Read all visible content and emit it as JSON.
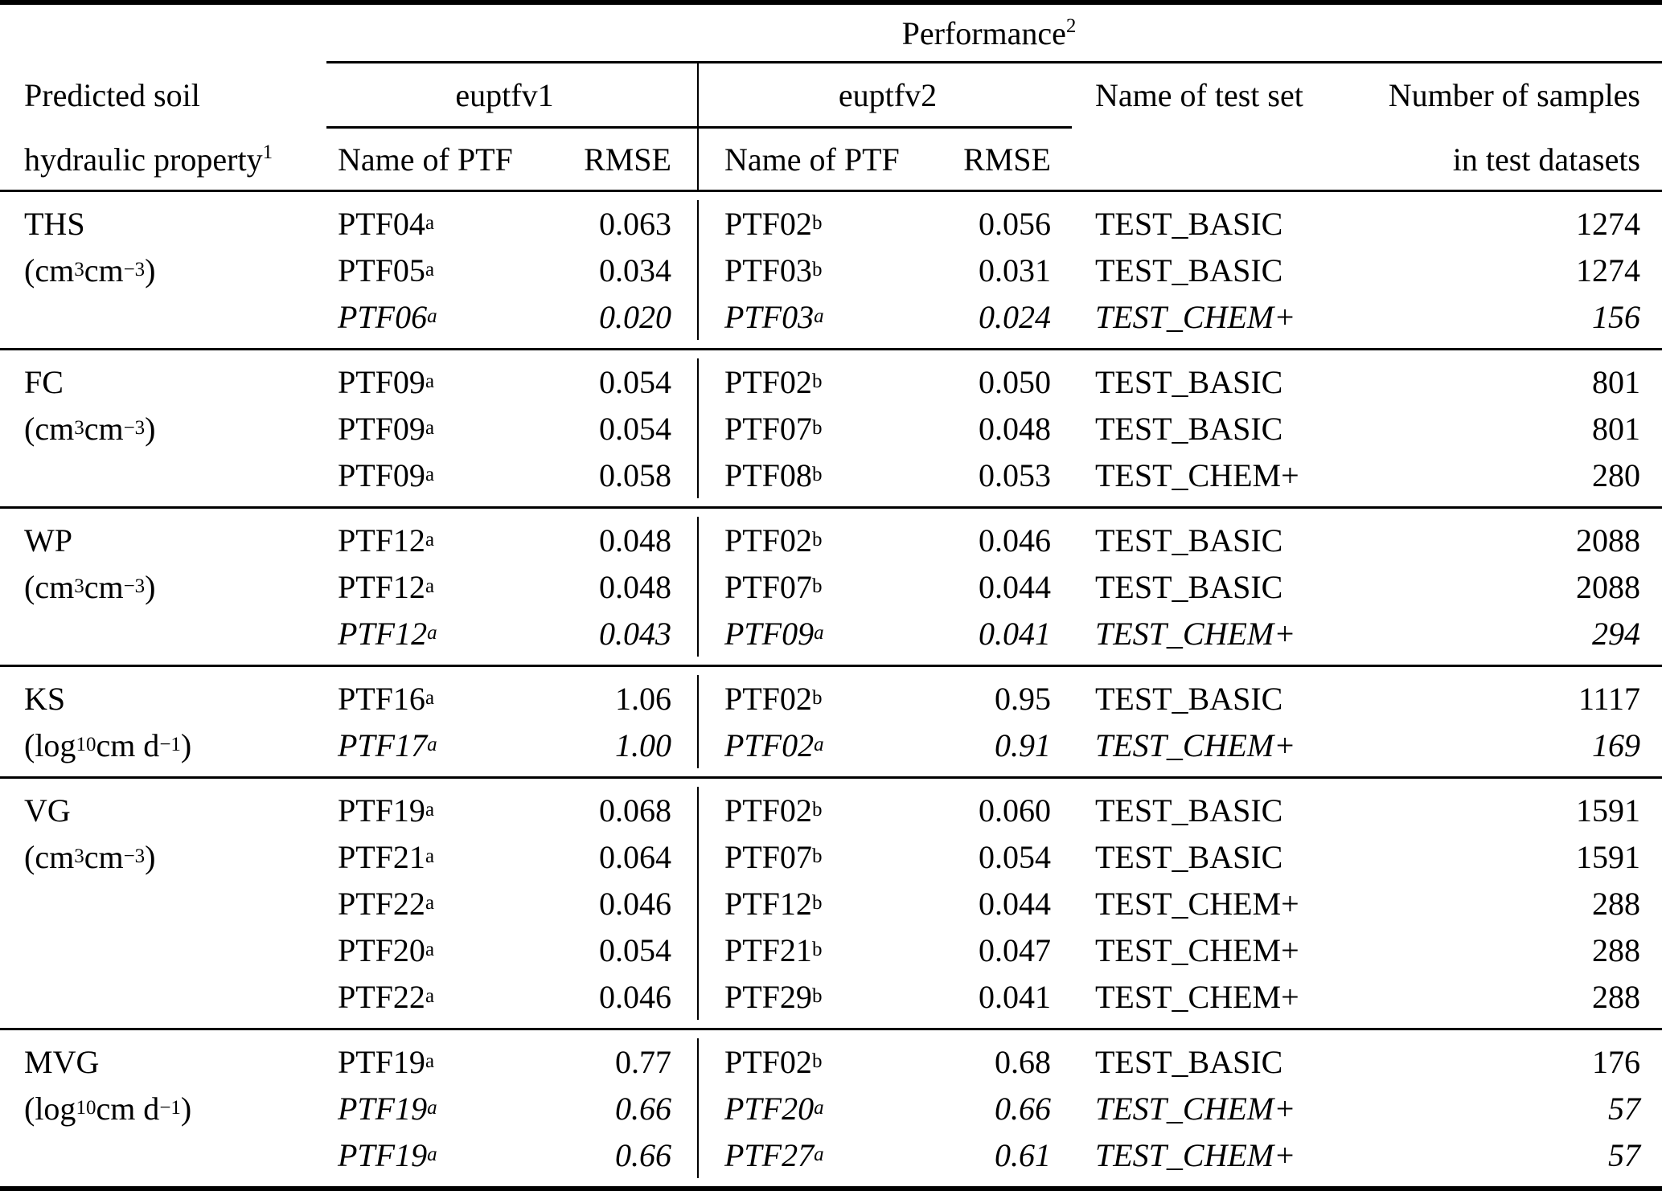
{
  "header": {
    "performance": "Performance",
    "performance_sup": "2",
    "property_line1": "Predicted soil",
    "property_line2": "hydraulic property",
    "property_sup": "1",
    "euptfv1": "euptfv1",
    "euptfv2": "euptfv2",
    "ptf_col": "Name of PTF",
    "rmse_col": "RMSE",
    "test_set_col": "Name of test set",
    "samples_col_line1": "Number of samples",
    "samples_col_line2": "in test datasets"
  },
  "colors": {
    "text": "#000000",
    "background": "#ffffff",
    "rules": "#000000"
  },
  "groups": [
    {
      "property": "THS",
      "unit": {
        "pre": "(cm",
        "sub": "",
        "sup1": "3",
        "mid": " cm",
        "sup2": "−3",
        "post": ")"
      },
      "rows": [
        {
          "italic": false,
          "v1_ptf": "PTF04",
          "v1_sup": "a",
          "v1_rmse": "0.063",
          "v2_ptf": "PTF02",
          "v2_sup": "b",
          "v2_rmse": "0.056",
          "test_set": "TEST_BASIC",
          "samples": "1274"
        },
        {
          "italic": false,
          "v1_ptf": "PTF05",
          "v1_sup": "a",
          "v1_rmse": "0.034",
          "v2_ptf": "PTF03",
          "v2_sup": "b",
          "v2_rmse": "0.031",
          "test_set": "TEST_BASIC",
          "samples": "1274"
        },
        {
          "italic": true,
          "v1_ptf": "PTF06",
          "v1_sup": "a",
          "v1_rmse": "0.020",
          "v2_ptf": "PTF03",
          "v2_sup": "a",
          "v2_rmse": "0.024",
          "test_set": "TEST_CHEM+",
          "samples": "156"
        }
      ]
    },
    {
      "property": "FC",
      "unit": {
        "pre": "(cm",
        "sub": "",
        "sup1": "3",
        "mid": " cm",
        "sup2": "−3",
        "post": ")"
      },
      "rows": [
        {
          "italic": false,
          "v1_ptf": "PTF09",
          "v1_sup": "a",
          "v1_rmse": "0.054",
          "v2_ptf": "PTF02",
          "v2_sup": "b",
          "v2_rmse": "0.050",
          "test_set": "TEST_BASIC",
          "samples": "801"
        },
        {
          "italic": false,
          "v1_ptf": "PTF09",
          "v1_sup": "a",
          "v1_rmse": "0.054",
          "v2_ptf": "PTF07",
          "v2_sup": "b",
          "v2_rmse": "0.048",
          "test_set": "TEST_BASIC",
          "samples": "801"
        },
        {
          "italic": false,
          "v1_ptf": "PTF09",
          "v1_sup": "a",
          "v1_rmse": "0.058",
          "v2_ptf": "PTF08",
          "v2_sup": "b",
          "v2_rmse": "0.053",
          "test_set": "TEST_CHEM+",
          "samples": "280"
        }
      ]
    },
    {
      "property": "WP",
      "unit": {
        "pre": "(cm",
        "sub": "",
        "sup1": "3",
        "mid": " cm",
        "sup2": "−3",
        "post": ")"
      },
      "rows": [
        {
          "italic": false,
          "v1_ptf": "PTF12",
          "v1_sup": "a",
          "v1_rmse": "0.048",
          "v2_ptf": "PTF02",
          "v2_sup": "b",
          "v2_rmse": "0.046",
          "test_set": "TEST_BASIC",
          "samples": "2088"
        },
        {
          "italic": false,
          "v1_ptf": "PTF12",
          "v1_sup": "a",
          "v1_rmse": "0.048",
          "v2_ptf": "PTF07",
          "v2_sup": "b",
          "v2_rmse": "0.044",
          "test_set": "TEST_BASIC",
          "samples": "2088"
        },
        {
          "italic": true,
          "v1_ptf": "PTF12",
          "v1_sup": "a",
          "v1_rmse": "0.043",
          "v2_ptf": "PTF09",
          "v2_sup": "a",
          "v2_rmse": "0.041",
          "test_set": "TEST_CHEM+",
          "samples": "294"
        }
      ]
    },
    {
      "property": "KS",
      "unit": {
        "pre": "(log",
        "sub": "10",
        "sup1": "",
        "mid": " cm d",
        "sup2": "−1",
        "post": ")"
      },
      "rows": [
        {
          "italic": false,
          "v1_ptf": "PTF16",
          "v1_sup": "a",
          "v1_rmse": "1.06",
          "v2_ptf": "PTF02",
          "v2_sup": "b",
          "v2_rmse": "0.95",
          "test_set": "TEST_BASIC",
          "samples": "1117"
        },
        {
          "italic": true,
          "v1_ptf": "PTF17",
          "v1_sup": "a",
          "v1_rmse": "1.00",
          "v2_ptf": "PTF02",
          "v2_sup": "a",
          "v2_rmse": "0.91",
          "test_set": "TEST_CHEM+",
          "samples": "169"
        }
      ]
    },
    {
      "property": "VG",
      "unit": {
        "pre": "(cm",
        "sub": "",
        "sup1": "3",
        "mid": " cm",
        "sup2": "−3",
        "post": ")"
      },
      "rows": [
        {
          "italic": false,
          "v1_ptf": "PTF19",
          "v1_sup": "a",
          "v1_rmse": "0.068",
          "v2_ptf": "PTF02",
          "v2_sup": "b",
          "v2_rmse": "0.060",
          "test_set": "TEST_BASIC",
          "samples": "1591"
        },
        {
          "italic": false,
          "v1_ptf": "PTF21",
          "v1_sup": "a",
          "v1_rmse": "0.064",
          "v2_ptf": "PTF07",
          "v2_sup": "b",
          "v2_rmse": "0.054",
          "test_set": "TEST_BASIC",
          "samples": "1591"
        },
        {
          "italic": false,
          "v1_ptf": "PTF22",
          "v1_sup": "a",
          "v1_rmse": "0.046",
          "v2_ptf": "PTF12",
          "v2_sup": "b",
          "v2_rmse": "0.044",
          "test_set": "TEST_CHEM+",
          "samples": "288"
        },
        {
          "italic": false,
          "v1_ptf": "PTF20",
          "v1_sup": "a",
          "v1_rmse": "0.054",
          "v2_ptf": "PTF21",
          "v2_sup": "b",
          "v2_rmse": "0.047",
          "test_set": "TEST_CHEM+",
          "samples": "288"
        },
        {
          "italic": false,
          "v1_ptf": "PTF22",
          "v1_sup": "a",
          "v1_rmse": "0.046",
          "v2_ptf": "PTF29",
          "v2_sup": "b",
          "v2_rmse": "0.041",
          "test_set": "TEST_CHEM+",
          "samples": "288"
        }
      ]
    },
    {
      "property": "MVG",
      "unit": {
        "pre": "(log",
        "sub": "10",
        "sup1": "",
        "mid": " cm d",
        "sup2": "−1",
        "post": ")"
      },
      "rows": [
        {
          "italic": false,
          "v1_ptf": "PTF19",
          "v1_sup": "a",
          "v1_rmse": "0.77",
          "v2_ptf": "PTF02",
          "v2_sup": "b",
          "v2_rmse": "0.68",
          "test_set": "TEST_BASIC",
          "samples": "176"
        },
        {
          "italic": true,
          "v1_ptf": "PTF19",
          "v1_sup": "a",
          "v1_rmse": "0.66",
          "v2_ptf": "PTF20",
          "v2_sup": "a",
          "v2_rmse": "0.66",
          "test_set": "TEST_CHEM+",
          "samples": "57"
        },
        {
          "italic": true,
          "v1_ptf": "PTF19",
          "v1_sup": "a",
          "v1_rmse": "0.66",
          "v2_ptf": "PTF27",
          "v2_sup": "a",
          "v2_rmse": "0.61",
          "test_set": "TEST_CHEM+",
          "samples": "57"
        }
      ]
    }
  ]
}
